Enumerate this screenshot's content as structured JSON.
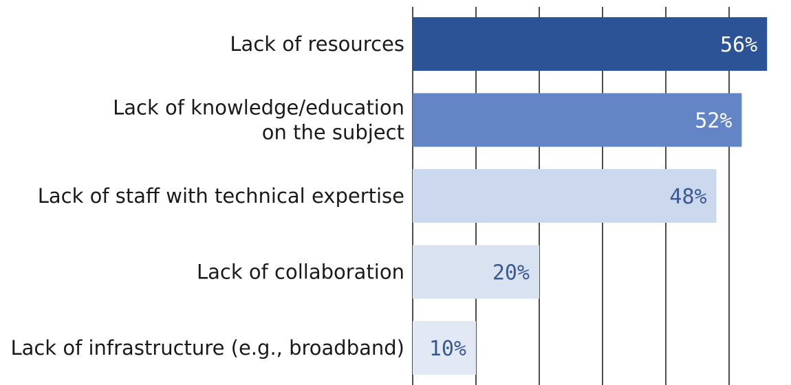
{
  "chart_data": {
    "type": "bar",
    "orientation": "horizontal",
    "categories": [
      [
        "Lack of resources"
      ],
      [
        "Lack of knowledge/education",
        "on the subject"
      ],
      [
        "Lack of staff with technical expertise"
      ],
      [
        "Lack of collaboration"
      ],
      [
        "Lack of infrastructure (e.g., broadband)"
      ]
    ],
    "values": [
      56,
      52,
      48,
      20,
      10
    ],
    "value_labels": [
      "56%",
      "52%",
      "48%",
      "20%",
      "10%"
    ],
    "xlim": [
      0,
      60
    ],
    "x_grid_step": 10,
    "grid": true,
    "colors": {
      "bars": [
        "#2b5395",
        "#6385c6",
        "#cbd8ee",
        "#d9e2f1",
        "#e2e9f5"
      ],
      "value_labels": [
        "#ffffff",
        "#ffffff",
        "#3a5a8f",
        "#3a5a8f",
        "#3a5a8f"
      ]
    }
  }
}
